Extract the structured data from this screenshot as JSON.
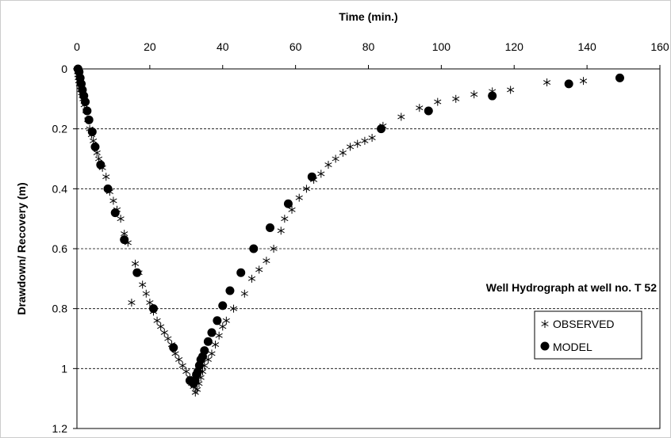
{
  "chart_data": {
    "type": "scatter",
    "xlabel": "Time (min.)",
    "ylabel": "Drawdown/ Recovery (m)",
    "annotation": "Well Hydrograph at well no. T 52",
    "xlim": [
      0,
      160
    ],
    "ylim": [
      0,
      1.2
    ],
    "x_ticks": [
      "0",
      "20",
      "40",
      "60",
      "80",
      "100",
      "120",
      "140",
      "160"
    ],
    "y_ticks": [
      "0",
      "0.2",
      "0.4",
      "0.6",
      "0.8",
      "1",
      "1.2"
    ],
    "x_axis_position": "top",
    "y_axis_inverted": true,
    "grid": "horizontal dashed",
    "legend_placement": "lower-right",
    "series": [
      {
        "name": "OBSERVED",
        "marker": "asterisk",
        "points": [
          [
            0.1,
            0.0
          ],
          [
            0.2,
            0.01
          ],
          [
            0.3,
            0.02
          ],
          [
            0.4,
            0.03
          ],
          [
            0.5,
            0.04
          ],
          [
            0.7,
            0.05
          ],
          [
            0.9,
            0.06
          ],
          [
            1.1,
            0.07
          ],
          [
            1.3,
            0.08
          ],
          [
            1.5,
            0.09
          ],
          [
            1.7,
            0.1
          ],
          [
            2.0,
            0.12
          ],
          [
            2.5,
            0.14
          ],
          [
            3.0,
            0.17
          ],
          [
            3.5,
            0.2
          ],
          [
            4.0,
            0.22
          ],
          [
            4.5,
            0.24
          ],
          [
            5.0,
            0.26
          ],
          [
            5.5,
            0.28
          ],
          [
            6.0,
            0.3
          ],
          [
            7.0,
            0.33
          ],
          [
            8.0,
            0.36
          ],
          [
            9.0,
            0.41
          ],
          [
            10.0,
            0.44
          ],
          [
            11.0,
            0.47
          ],
          [
            12.0,
            0.5
          ],
          [
            13.0,
            0.55
          ],
          [
            14.0,
            0.58
          ],
          [
            15.0,
            0.78
          ],
          [
            16.0,
            0.65
          ],
          [
            17.0,
            0.68
          ],
          [
            18.0,
            0.72
          ],
          [
            19.0,
            0.75
          ],
          [
            20.0,
            0.78
          ],
          [
            21.0,
            0.81
          ],
          [
            22.0,
            0.84
          ],
          [
            23.0,
            0.86
          ],
          [
            24.0,
            0.88
          ],
          [
            25.0,
            0.9
          ],
          [
            26.0,
            0.92
          ],
          [
            27.0,
            0.95
          ],
          [
            28.0,
            0.97
          ],
          [
            29.0,
            0.99
          ],
          [
            30.0,
            1.01
          ],
          [
            31.0,
            1.03
          ],
          [
            31.5,
            1.05
          ],
          [
            32.0,
            1.06
          ],
          [
            32.5,
            1.08
          ],
          [
            33.0,
            1.07
          ],
          [
            33.5,
            1.05
          ],
          [
            34.0,
            1.03
          ],
          [
            34.5,
            1.01
          ],
          [
            35.0,
            0.99
          ],
          [
            36.0,
            0.97
          ],
          [
            37.0,
            0.95
          ],
          [
            38.0,
            0.92
          ],
          [
            39.0,
            0.89
          ],
          [
            40.0,
            0.86
          ],
          [
            41.0,
            0.84
          ],
          [
            43.0,
            0.8
          ],
          [
            46.0,
            0.75
          ],
          [
            48.0,
            0.7
          ],
          [
            50.0,
            0.67
          ],
          [
            52.0,
            0.64
          ],
          [
            54.0,
            0.6
          ],
          [
            56.0,
            0.54
          ],
          [
            57.0,
            0.5
          ],
          [
            59.0,
            0.47
          ],
          [
            61.0,
            0.43
          ],
          [
            63.0,
            0.4
          ],
          [
            65.0,
            0.37
          ],
          [
            67.0,
            0.35
          ],
          [
            69.0,
            0.32
          ],
          [
            71.0,
            0.3
          ],
          [
            73.0,
            0.28
          ],
          [
            75.0,
            0.26
          ],
          [
            77.0,
            0.25
          ],
          [
            79.0,
            0.24
          ],
          [
            81.0,
            0.23
          ],
          [
            84.0,
            0.19
          ],
          [
            89.0,
            0.16
          ],
          [
            94.0,
            0.13
          ],
          [
            99.0,
            0.11
          ],
          [
            104.0,
            0.1
          ],
          [
            109.0,
            0.085
          ],
          [
            114.0,
            0.075
          ],
          [
            119.0,
            0.07
          ],
          [
            129.0,
            0.045
          ],
          [
            139.0,
            0.04
          ],
          [
            149.0,
            0.03
          ]
        ]
      },
      {
        "name": "MODEL",
        "marker": "circle",
        "points": [
          [
            0.3,
            0.0
          ],
          [
            0.6,
            0.01
          ],
          [
            0.9,
            0.03
          ],
          [
            1.2,
            0.05
          ],
          [
            1.5,
            0.07
          ],
          [
            1.9,
            0.09
          ],
          [
            2.3,
            0.11
          ],
          [
            2.8,
            0.14
          ],
          [
            3.3,
            0.17
          ],
          [
            4.2,
            0.21
          ],
          [
            5.0,
            0.26
          ],
          [
            6.5,
            0.32
          ],
          [
            8.5,
            0.4
          ],
          [
            10.5,
            0.48
          ],
          [
            13.0,
            0.57
          ],
          [
            16.5,
            0.68
          ],
          [
            21.0,
            0.8
          ],
          [
            26.5,
            0.93
          ],
          [
            31.0,
            1.04
          ],
          [
            32.0,
            1.05
          ],
          [
            32.4,
            1.04
          ],
          [
            32.8,
            1.02
          ],
          [
            33.2,
            1.01
          ],
          [
            33.6,
            0.99
          ],
          [
            34.0,
            0.97
          ],
          [
            34.5,
            0.96
          ],
          [
            35.0,
            0.94
          ],
          [
            36.0,
            0.91
          ],
          [
            37.0,
            0.88
          ],
          [
            38.5,
            0.84
          ],
          [
            40.0,
            0.79
          ],
          [
            42.0,
            0.74
          ],
          [
            45.0,
            0.68
          ],
          [
            48.5,
            0.6
          ],
          [
            53.0,
            0.53
          ],
          [
            58.0,
            0.45
          ],
          [
            64.5,
            0.36
          ],
          [
            83.5,
            0.2
          ],
          [
            96.5,
            0.14
          ],
          [
            114.0,
            0.09
          ],
          [
            135.0,
            0.05
          ],
          [
            149.0,
            0.03
          ]
        ]
      }
    ]
  }
}
